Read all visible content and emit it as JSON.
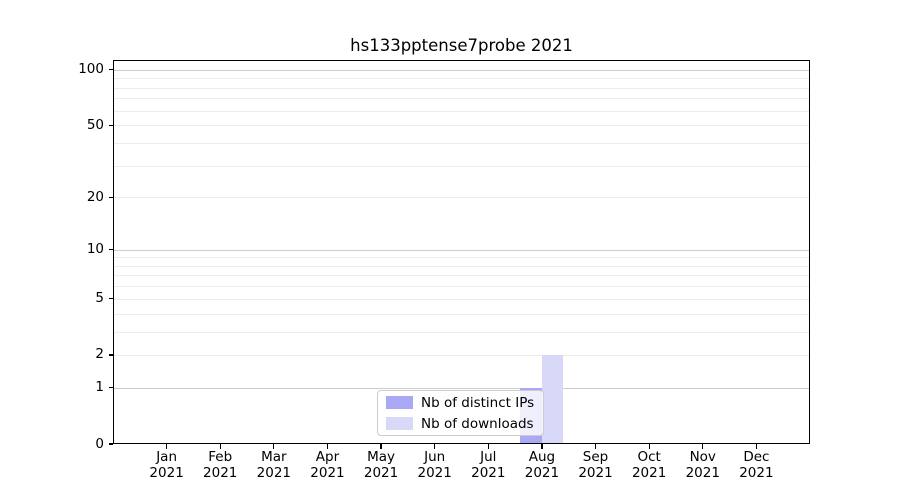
{
  "chart_data": {
    "type": "bar",
    "title": "hs133pptense7probe 2021",
    "categories": [
      "Jan",
      "Feb",
      "Mar",
      "Apr",
      "May",
      "Jun",
      "Jul",
      "Aug",
      "Sep",
      "Oct",
      "Nov",
      "Dec"
    ],
    "x_year_label": "2021",
    "series": [
      {
        "name": "Nb of distinct IPs",
        "color": "#a8a8f4",
        "values": [
          0,
          0,
          0,
          0,
          0,
          0,
          0,
          1,
          0,
          0,
          0,
          0
        ]
      },
      {
        "name": "Nb of downloads",
        "color": "#d8d8f8",
        "values": [
          0,
          0,
          0,
          0,
          0,
          0,
          0,
          2,
          0,
          0,
          0,
          0
        ]
      }
    ],
    "yscale": "log1p",
    "ylim": [
      0,
      113
    ],
    "y_tick_values": [
      0,
      1,
      2,
      5,
      10,
      20,
      50,
      100
    ],
    "y_tick_labels": [
      "0",
      "1",
      "2",
      "5",
      "10",
      "20",
      "50",
      "100"
    ],
    "y_major_gridlines": [
      1,
      10,
      100
    ],
    "y_minor_gridlines": [
      2,
      3,
      4,
      5,
      6,
      7,
      8,
      9,
      20,
      30,
      40,
      50,
      60,
      70,
      80,
      90
    ],
    "bar_width_months": 0.4,
    "legend_position": "lower center-right",
    "grid": true
  },
  "colors": {
    "major_grid": "#cccccc",
    "minor_grid": "#ececec",
    "spine": "#000000",
    "background": "#ffffff",
    "text": "#000000"
  }
}
